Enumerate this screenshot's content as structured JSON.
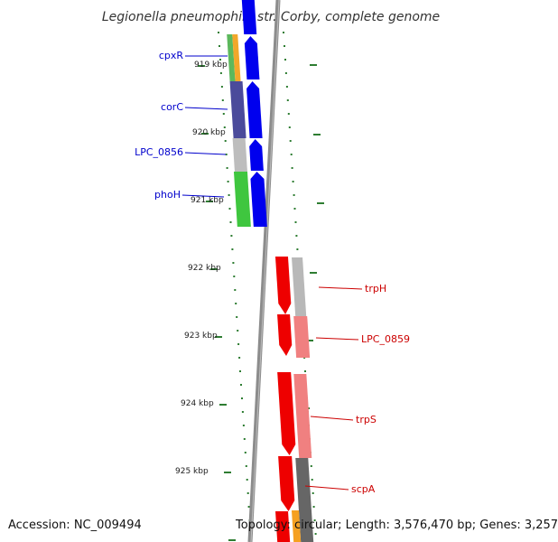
{
  "title": "Legionella pneumophila str. Corby, complete genome",
  "accession": "Accession: NC_009494",
  "topology": "Topology: circular; Length: 3,576,470 bp; Genes: 3,257",
  "colors": {
    "backbone": "#8c8c8c",
    "tick": "#2e7d32",
    "forward_label": "#0000cc",
    "reverse_label": "#cc0000",
    "forward_cds": "#0000ee",
    "reverse_cds": "#ee0000"
  },
  "scale_labels": [
    "919 kbp",
    "920 kbp",
    "921 kbp",
    "922 kbp",
    "923 kbp",
    "924 kbp",
    "925 kbp"
  ],
  "forward_genes": [
    {
      "label": "cpxR",
      "color": "#0000cc"
    },
    {
      "label": "corC",
      "color": "#0000cc"
    },
    {
      "label": "LPC_0856",
      "color": "#0000cc"
    },
    {
      "label": "phoH",
      "color": "#0000cc"
    }
  ],
  "reverse_genes": [
    {
      "label": "trpH",
      "color": "#cc0000"
    },
    {
      "label": "LPC_0859",
      "color": "#cc0000"
    },
    {
      "label": "trpS",
      "color": "#cc0000"
    },
    {
      "label": "scpA",
      "color": "#cc0000"
    }
  ]
}
